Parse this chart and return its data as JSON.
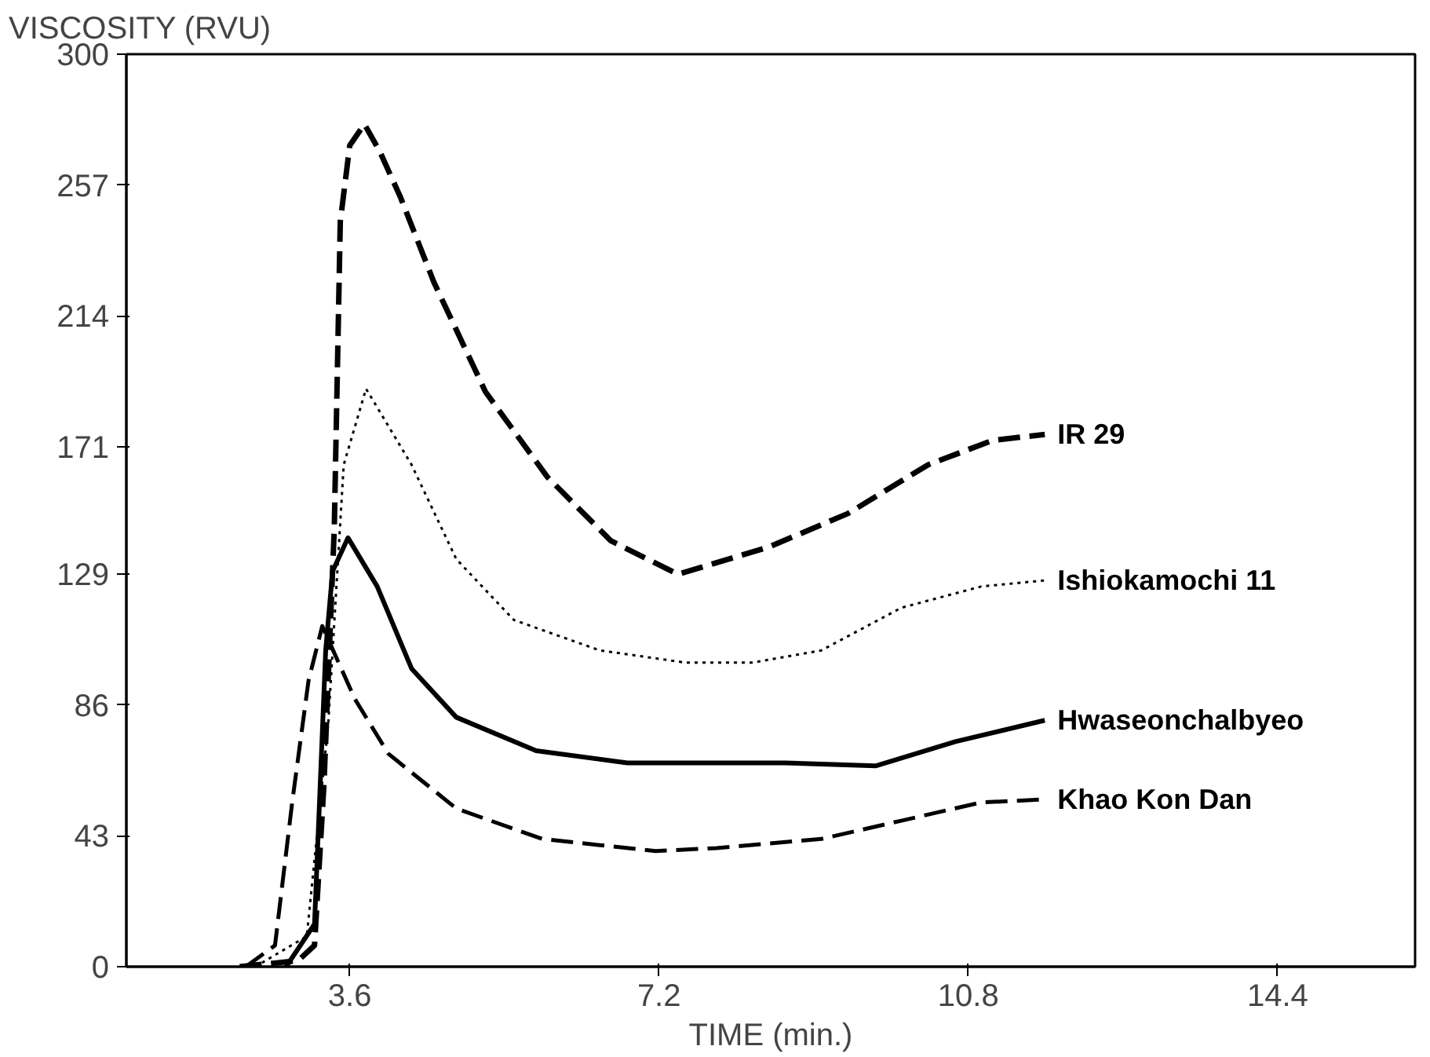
{
  "chart_data": {
    "type": "line",
    "xlabel": "TIME (min.)",
    "ylabel": "VISCOSITY (RVU)",
    "xlim": [
      1.0,
      16.0
    ],
    "xticks": [
      3.6,
      7.2,
      10.8,
      14.4
    ],
    "ylim": [
      0,
      300
    ],
    "yticks": [
      0,
      43,
      86,
      129,
      171,
      214,
      257,
      300
    ],
    "grid": false,
    "legend": false,
    "series": [
      {
        "name": "IR 29",
        "color": "#000000",
        "line_style": "dashed",
        "x": [
          2.32,
          3.0,
          3.19,
          3.3,
          3.42,
          3.49,
          3.6,
          3.77,
          3.95,
          4.19,
          4.58,
          5.18,
          5.9,
          6.64,
          7.42,
          8.48,
          9.4,
          10.33,
          11.08,
          11.69
        ],
        "values": [
          0,
          2,
          7,
          60,
          144,
          245,
          270,
          277,
          268,
          253,
          225,
          189,
          161,
          140,
          129,
          138,
          149,
          165,
          173,
          175
        ]
      },
      {
        "name": "Ishiokamochi 11",
        "color": "#000000",
        "line_style": "dotted",
        "x": [
          2.5,
          3.1,
          3.35,
          3.53,
          3.79,
          4.32,
          4.84,
          5.51,
          6.51,
          7.5,
          8.3,
          9.09,
          10.02,
          10.95,
          11.69
        ],
        "values": [
          0,
          10,
          80,
          165,
          190,
          165,
          134,
          114,
          104,
          100,
          100,
          104,
          118,
          125,
          127
        ]
      },
      {
        "name": "Hwaseonchalbyeo",
        "color": "#000000",
        "line_style": "solid",
        "x": [
          2.86,
          3.19,
          3.32,
          3.4,
          3.58,
          3.92,
          4.32,
          4.84,
          5.77,
          6.83,
          8.66,
          9.72,
          10.65,
          11.69
        ],
        "values": [
          0,
          14,
          104,
          130,
          141,
          125,
          98,
          82,
          71,
          67,
          67,
          66,
          74,
          81
        ]
      },
      {
        "name": "Khao Kon Dan",
        "color": "#000000",
        "line_style": "dashed",
        "x": [
          2.39,
          2.73,
          2.93,
          3.12,
          3.28,
          3.66,
          4.05,
          4.84,
          5.84,
          7.16,
          7.87,
          9.09,
          10.02,
          10.95,
          11.69
        ],
        "values": [
          0,
          7,
          54,
          94,
          112,
          88,
          70,
          52,
          42,
          38,
          39,
          42,
          48,
          54,
          55
        ]
      }
    ]
  }
}
